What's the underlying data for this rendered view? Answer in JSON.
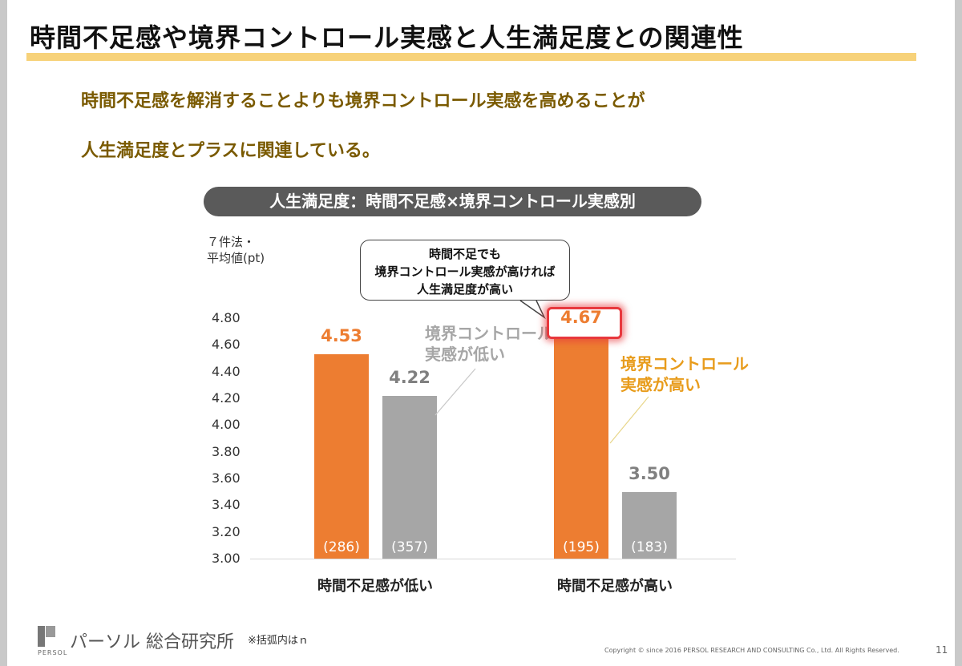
{
  "title": "時間不足感や境界コントロール実感と人生満足度との関連性",
  "subtitle_line1": "時間不足感を解消することよりも境界コントロール実感を高めることが",
  "subtitle_line2": "人生満足度とプラスに関連している。",
  "chart_header": "人生満足度：時間不足感×境界コントロール実感別",
  "callout": {
    "line1": "時間不足でも",
    "line2": "境界コントロール実感が高ければ",
    "line3": "人生満足度が高い"
  },
  "annotations": {
    "low_line1": "境界コントロール",
    "low_line2": "実感が低い",
    "high_line1": "境界コントロール",
    "high_line2": "実感が高い"
  },
  "footer": {
    "logo_text": "パーソル 総合研究所",
    "logo_small": "PERSOL",
    "note": "※括弧内はｎ",
    "copyright": "Copyright © since 2016  PERSOL  RESEARCH AND CONSULTING Co., Ltd. All Rights Reserved.",
    "page_number": "11"
  },
  "colors": {
    "orange": "#ed7d31",
    "gray": "#a6a6a6",
    "title_rule": "#f7d27a",
    "subtitle": "#7a5a00",
    "highlight": "#e8383d"
  },
  "chart_data": {
    "type": "bar",
    "title": "人生満足度：時間不足感×境界コントロール実感別",
    "ylabel_line1": "７件法・",
    "ylabel_line2": "平均値(pt)",
    "ylim": [
      3.0,
      4.8
    ],
    "yticks": [
      "4.80",
      "4.60",
      "4.40",
      "4.20",
      "4.00",
      "3.80",
      "3.60",
      "3.40",
      "3.20",
      "3.00"
    ],
    "categories": [
      "時間不足感が低い",
      "時間不足感が高い"
    ],
    "bars": [
      {
        "category": 0,
        "series": "境界コントロール実感が高い",
        "value": 4.53,
        "label": "4.53",
        "n": "(286)",
        "color": "#ed7d31"
      },
      {
        "category": 0,
        "series": "境界コントロール実感が低い",
        "value": 4.22,
        "label": "4.22",
        "n": "(357)",
        "color": "#a6a6a6"
      },
      {
        "category": 1,
        "series": "境界コントロール実感が高い",
        "value": 4.67,
        "label": "4.67",
        "n": "(195)",
        "color": "#ed7d31"
      },
      {
        "category": 1,
        "series": "境界コントロール実感が低い",
        "value": 3.5,
        "label": "3.50",
        "n": "(183)",
        "color": "#a6a6a6"
      }
    ],
    "grid": false,
    "legend": "annotations"
  }
}
